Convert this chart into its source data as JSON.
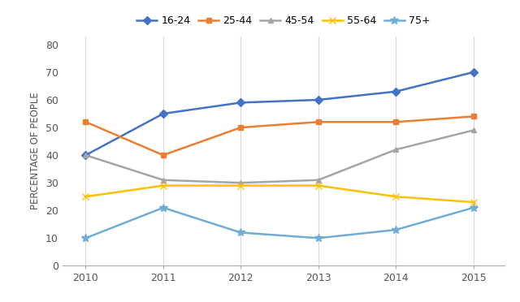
{
  "years": [
    2010,
    2011,
    2012,
    2013,
    2014,
    2015
  ],
  "series": [
    {
      "label": "16-24",
      "values": [
        40,
        55,
        59,
        60,
        63,
        70
      ],
      "color": "#4472C4",
      "marker": "D",
      "markersize": 5
    },
    {
      "label": "25-44",
      "values": [
        52,
        40,
        50,
        52,
        52,
        54
      ],
      "color": "#ED7D31",
      "marker": "s",
      "markersize": 5
    },
    {
      "label": "45-54",
      "values": [
        40,
        31,
        30,
        31,
        42,
        49
      ],
      "color": "#A5A5A5",
      "marker": "^",
      "markersize": 5
    },
    {
      "label": "55-64",
      "values": [
        25,
        29,
        29,
        29,
        25,
        23
      ],
      "color": "#FFC000",
      "marker": "x",
      "markersize": 6
    },
    {
      "label": "75+",
      "values": [
        10,
        21,
        12,
        10,
        13,
        21
      ],
      "color": "#70ADD4",
      "marker": "*",
      "markersize": 7
    }
  ],
  "ylabel": "PERCENTAGE OF PEOPLE",
  "ylim": [
    0,
    83
  ],
  "yticks": [
    0,
    10,
    20,
    30,
    40,
    50,
    60,
    70,
    80
  ],
  "xlim": [
    2009.7,
    2015.4
  ],
  "xticks": [
    2010,
    2011,
    2012,
    2013,
    2014,
    2015
  ],
  "linewidth": 1.8,
  "grid_color": "#D9D9D9",
  "bg_color": "#FFFFFF",
  "legend_fontsize": 9,
  "axis_fontsize": 9,
  "ylabel_fontsize": 8.5
}
